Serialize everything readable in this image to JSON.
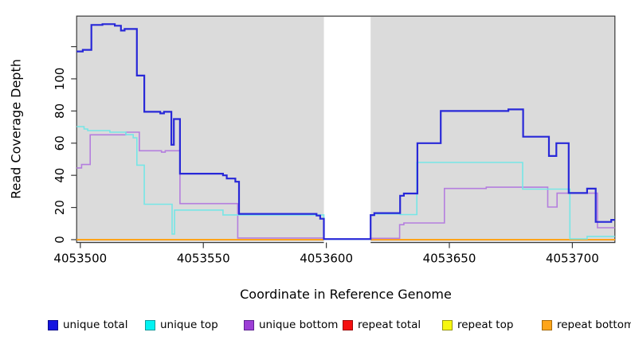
{
  "figure": {
    "x_axis_title": "Coordinate in Reference Genome",
    "y_axis_title": "Read Coverage Depth"
  },
  "chart_data": {
    "type": "line",
    "subtype": "step",
    "title": "",
    "xlabel": "Coordinate in Reference Genome",
    "ylabel": "Read Coverage Depth",
    "xlim": [
      4053498.5,
      4053717.3
    ],
    "ylim": [
      -1.8,
      139.0
    ],
    "x_ticks": [
      4053500,
      4053550,
      4053600,
      4053650,
      4053700
    ],
    "y_ticks": [
      0,
      20,
      40,
      60,
      80,
      100
    ],
    "y_extra_unlabeled_tick": 120,
    "grid": false,
    "plot_background": "#DBDBDB",
    "frame_color": "#3A3A3A",
    "mask_region": {
      "x_start": 4053599,
      "x_end": 4053618,
      "color": "#FFFFFF"
    },
    "legend_position": "bottom",
    "series": [
      {
        "name": "repeat total",
        "line_color": "#E23B3B",
        "line_width": 1.6,
        "legend_fill": "#F50F0F",
        "legend_border": "#9A0A0A",
        "points": [
          [
            4053498.5,
            0
          ],
          [
            4053717.3,
            0
          ]
        ]
      },
      {
        "name": "repeat top",
        "line_color": "#EDED4D",
        "line_width": 1.4,
        "legend_fill": "#F7F70F",
        "legend_border": "#97970F",
        "points": [
          [
            4053498.5,
            0
          ],
          [
            4053717.3,
            0
          ]
        ]
      },
      {
        "name": "repeat bottom",
        "line_color": "#FFA319",
        "line_width": 2,
        "legend_fill": "#FFA519",
        "legend_border": "#A86A0A",
        "points": [
          [
            4053498.5,
            0
          ],
          [
            4053717.3,
            0
          ]
        ]
      },
      {
        "name": "unique bottom",
        "line_color": "#B47EDE",
        "line_width": 1.6,
        "legend_fill": "#9D3ED6",
        "legend_border": "#5E2391",
        "points": [
          [
            4053498.5,
            44.6
          ],
          [
            4053500.5,
            46.7
          ],
          [
            4053504,
            65.2
          ],
          [
            4053518.5,
            66.8
          ],
          [
            4053524,
            55.3
          ],
          [
            4053533,
            54.4
          ],
          [
            4053534.5,
            55.3
          ],
          [
            4053540.5,
            22.4
          ],
          [
            4053564,
            1
          ],
          [
            4053599,
            0.3
          ],
          [
            4053618,
            0.8
          ],
          [
            4053629.8,
            9.3
          ],
          [
            4053631.5,
            10.4
          ],
          [
            4053648,
            31.8
          ],
          [
            4053665,
            32.6
          ],
          [
            4053690,
            20.3
          ],
          [
            4053693.8,
            28.9
          ],
          [
            4053710.2,
            7.4
          ]
        ]
      },
      {
        "name": "unique top",
        "line_color": "#76E6E6",
        "line_width": 1.6,
        "legend_fill": "#00F2F2",
        "legend_border": "#109A9A",
        "points": [
          [
            4053498.5,
            70.3
          ],
          [
            4053501.5,
            68.8
          ],
          [
            4053503,
            67.8
          ],
          [
            4053512,
            66.8
          ],
          [
            4053518.5,
            65.3
          ],
          [
            4053521.5,
            63.3
          ],
          [
            4053523,
            46.3
          ],
          [
            4053526,
            22
          ],
          [
            4053537.3,
            3.5
          ],
          [
            4053538.3,
            18.4
          ],
          [
            4053558,
            15.4
          ],
          [
            4053599,
            0.3
          ],
          [
            4053618,
            15.2
          ],
          [
            4053619.5,
            16
          ],
          [
            4053630,
            15.6
          ],
          [
            4053636.8,
            48
          ],
          [
            4053679.8,
            31.4
          ],
          [
            4053699,
            0.5
          ],
          [
            4053706,
            2
          ]
        ]
      },
      {
        "name": "unique total",
        "line_color": "#2828D8",
        "line_width": 2.2,
        "legend_fill": "#1414E0",
        "legend_border": "#0A0A8C",
        "points": [
          [
            4053498.5,
            117
          ],
          [
            4053501,
            118
          ],
          [
            4053504.5,
            133.5
          ],
          [
            4053509,
            134
          ],
          [
            4053514,
            133
          ],
          [
            4053516.5,
            130
          ],
          [
            4053518,
            131
          ],
          [
            4053523,
            102
          ],
          [
            4053526,
            79.5
          ],
          [
            4053532.5,
            78.5
          ],
          [
            4053534,
            79.5
          ],
          [
            4053537,
            59
          ],
          [
            4053538,
            75
          ],
          [
            4053540.5,
            41
          ],
          [
            4053558,
            40
          ],
          [
            4053559.5,
            38
          ],
          [
            4053563,
            36
          ],
          [
            4053564.5,
            16
          ],
          [
            4053596,
            15
          ],
          [
            4053597.5,
            13
          ],
          [
            4053599,
            0.4
          ],
          [
            4053618,
            15.3
          ],
          [
            4053619.5,
            16.5
          ],
          [
            4053630,
            27.3
          ],
          [
            4053631.5,
            28.7
          ],
          [
            4053637,
            60
          ],
          [
            4053646.5,
            80
          ],
          [
            4053674,
            81
          ],
          [
            4053680,
            64
          ],
          [
            4053690.5,
            52
          ],
          [
            4053693.5,
            60
          ],
          [
            4053698.5,
            29
          ],
          [
            4053706,
            31.7
          ],
          [
            4053709.5,
            11
          ],
          [
            4053715.8,
            12.3
          ]
        ]
      }
    ],
    "legend_order": [
      "unique total",
      "unique top",
      "unique bottom",
      "repeat total",
      "repeat top",
      "repeat bottom"
    ]
  },
  "layout_hints": {
    "legend_x_positions": [
      60,
      182,
      306,
      430,
      555,
      680
    ]
  }
}
